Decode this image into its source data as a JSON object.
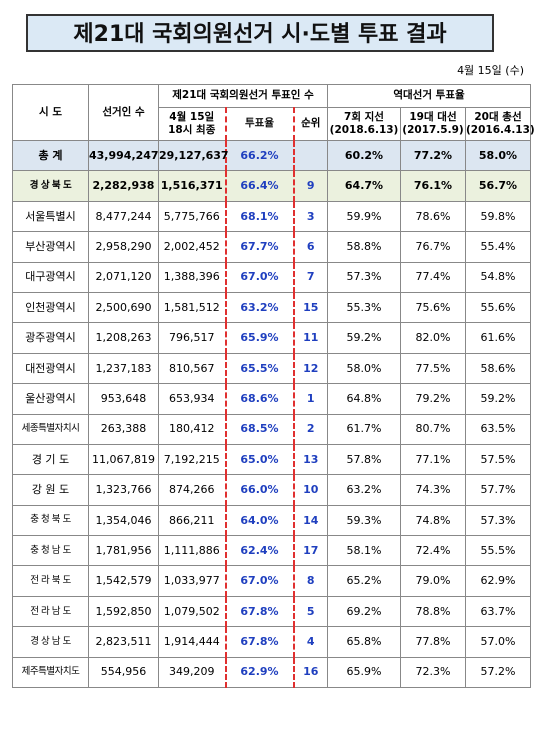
{
  "title": "제21대 국회의원선거 시·도별 투표 결과",
  "date": "4월 15일 (수)",
  "table": {
    "header": {
      "region": "시 도",
      "electors": "선거인 수",
      "voters_group": "제21대 국회의원선거 투표인 수",
      "history_group": "역대선거 투표율",
      "final": "4월 15일\n18시 최종",
      "turnout": "투표율",
      "rank": "순위",
      "local7": "7회 지선\n(2018.6.13)",
      "pres19": "19대 대선\n(2017.5.9)",
      "gen20": "20대 총선\n(2016.4.13)"
    },
    "rows": [
      [
        "총 계",
        "43,994,247",
        "29,127,637",
        "66.2%",
        null,
        "60.2%",
        "77.2%",
        "58.0%"
      ],
      [
        "경 상 북 도",
        "2,282,938",
        "1,516,371",
        "66.4%",
        "9",
        "64.7%",
        "76.1%",
        "56.7%"
      ],
      [
        "서울특별시",
        "8,477,244",
        "5,775,766",
        "68.1%",
        "3",
        "59.9%",
        "78.6%",
        "59.8%"
      ],
      [
        "부산광역시",
        "2,958,290",
        "2,002,452",
        "67.7%",
        "6",
        "58.8%",
        "76.7%",
        "55.4%"
      ],
      [
        "대구광역시",
        "2,071,120",
        "1,388,396",
        "67.0%",
        "7",
        "57.3%",
        "77.4%",
        "54.8%"
      ],
      [
        "인천광역시",
        "2,500,690",
        "1,581,512",
        "63.2%",
        "15",
        "55.3%",
        "75.6%",
        "55.6%"
      ],
      [
        "광주광역시",
        "1,208,263",
        "796,517",
        "65.9%",
        "11",
        "59.2%",
        "82.0%",
        "61.6%"
      ],
      [
        "대전광역시",
        "1,237,183",
        "810,567",
        "65.5%",
        "12",
        "58.0%",
        "77.5%",
        "58.6%"
      ],
      [
        "울산광역시",
        "953,648",
        "653,934",
        "68.6%",
        "1",
        "64.8%",
        "79.2%",
        "59.2%"
      ],
      [
        "세종특별자치시",
        "263,388",
        "180,412",
        "68.5%",
        "2",
        "61.7%",
        "80.7%",
        "63.5%"
      ],
      [
        "경 기 도",
        "11,067,819",
        "7,192,215",
        "65.0%",
        "13",
        "57.8%",
        "77.1%",
        "57.5%"
      ],
      [
        "강 원 도",
        "1,323,766",
        "874,266",
        "66.0%",
        "10",
        "63.2%",
        "74.3%",
        "57.7%"
      ],
      [
        "충 청 북 도",
        "1,354,046",
        "866,211",
        "64.0%",
        "14",
        "59.3%",
        "74.8%",
        "57.3%"
      ],
      [
        "충 청 남 도",
        "1,781,956",
        "1,111,886",
        "62.4%",
        "17",
        "58.1%",
        "72.4%",
        "55.5%"
      ],
      [
        "전 라 북 도",
        "1,542,579",
        "1,033,977",
        "67.0%",
        "8",
        "65.2%",
        "79.0%",
        "62.9%"
      ],
      [
        "전 라 남 도",
        "1,592,850",
        "1,079,502",
        "67.8%",
        "5",
        "69.2%",
        "78.8%",
        "63.7%"
      ],
      [
        "경 상 남 도",
        "2,823,511",
        "1,914,444",
        "67.8%",
        "4",
        "65.8%",
        "77.8%",
        "57.0%"
      ],
      [
        "제주특별자치도",
        "554,956",
        "349,209",
        "62.9%",
        "16",
        "65.9%",
        "72.3%",
        "57.2%"
      ]
    ]
  }
}
